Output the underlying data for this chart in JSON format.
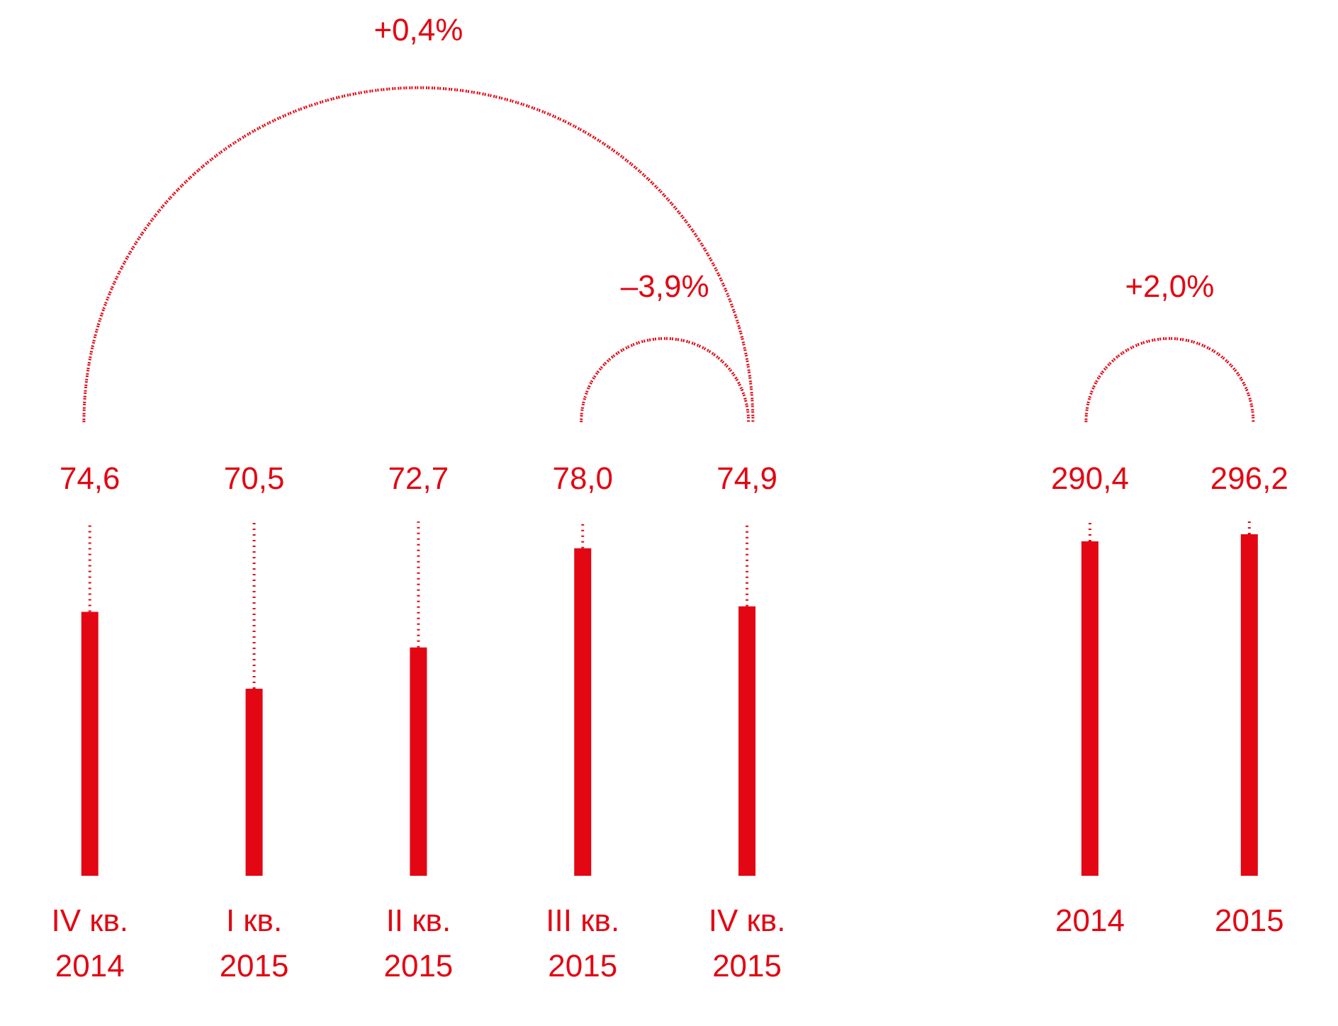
{
  "chart_data": [
    {
      "type": "bar",
      "categories": [
        "IV кв.\n2014",
        "I кв.\n2015",
        "II кв.\n2015",
        "III кв.\n2015",
        "IV кв.\n2015"
      ],
      "values": [
        74.6,
        70.5,
        72.7,
        78.0,
        74.9
      ],
      "value_labels": [
        "74,6",
        "70,5",
        "72,7",
        "78,0",
        "74,9"
      ],
      "color": "#e30613",
      "ylim": [
        60.5,
        107.3
      ],
      "annotations": [
        "+0,4%",
        "–3,9%"
      ]
    },
    {
      "type": "bar",
      "categories": [
        "2014",
        "2015"
      ],
      "values": [
        290.4,
        296.2
      ],
      "value_labels": [
        "290,4",
        "296,2"
      ],
      "color": "#e30613",
      "ylim": [
        16.6,
        733.5
      ],
      "annotations": [
        "+2,0%"
      ]
    }
  ]
}
